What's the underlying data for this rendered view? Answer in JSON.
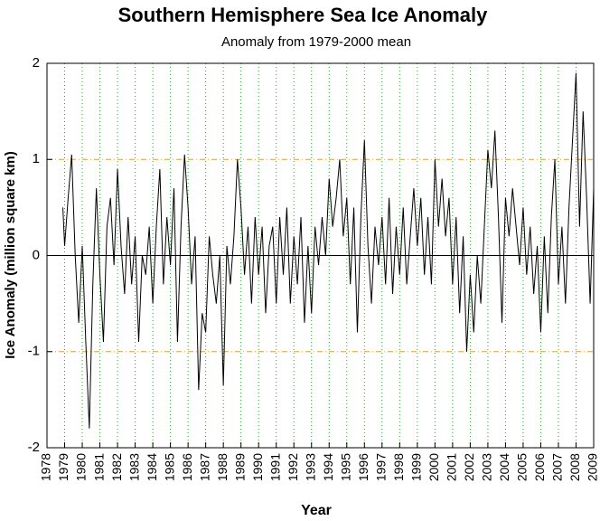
{
  "chart_data": {
    "type": "line",
    "title": "Southern Hemisphere Sea Ice Anomaly",
    "subtitle": "Anomaly from 1979-2000 mean",
    "xlabel": "Year",
    "ylabel": "Ice Anomaly (million square km)",
    "xlim": [
      1978,
      2009
    ],
    "ylim": [
      -2,
      2
    ],
    "xticks": [
      1978,
      1979,
      1980,
      1981,
      1982,
      1983,
      1984,
      1985,
      1986,
      1987,
      1988,
      1989,
      1990,
      1991,
      1992,
      1993,
      1994,
      1995,
      1996,
      1997,
      1998,
      1999,
      2000,
      2001,
      2002,
      2003,
      2004,
      2005,
      2006,
      2007,
      2008,
      2009
    ],
    "yticks": [
      -2,
      -1,
      0,
      1,
      2
    ],
    "grid": true,
    "series": [
      {
        "name": "Anomaly",
        "color": "#000000",
        "x": [
          1978.9,
          1979.0,
          1979.2,
          1979.4,
          1979.6,
          1979.8,
          1980.0,
          1980.2,
          1980.4,
          1980.6,
          1980.8,
          1981.0,
          1981.2,
          1981.4,
          1981.6,
          1981.8,
          1982.0,
          1982.2,
          1982.4,
          1982.6,
          1982.8,
          1983.0,
          1983.2,
          1983.4,
          1983.6,
          1983.8,
          1984.0,
          1984.2,
          1984.4,
          1984.6,
          1984.8,
          1985.0,
          1985.2,
          1985.4,
          1985.6,
          1985.8,
          1986.0,
          1986.2,
          1986.4,
          1986.6,
          1986.8,
          1987.0,
          1987.2,
          1987.4,
          1987.6,
          1987.8,
          1988.0,
          1988.2,
          1988.4,
          1988.6,
          1988.8,
          1989.0,
          1989.2,
          1989.4,
          1989.6,
          1989.8,
          1990.0,
          1990.2,
          1990.4,
          1990.6,
          1990.8,
          1991.0,
          1991.2,
          1991.4,
          1991.6,
          1991.8,
          1992.0,
          1992.2,
          1992.4,
          1992.6,
          1992.8,
          1993.0,
          1993.2,
          1993.4,
          1993.6,
          1993.8,
          1994.0,
          1994.2,
          1994.4,
          1994.6,
          1994.8,
          1995.0,
          1995.2,
          1995.4,
          1995.6,
          1995.8,
          1996.0,
          1996.2,
          1996.4,
          1996.6,
          1996.8,
          1997.0,
          1997.2,
          1997.4,
          1997.6,
          1997.8,
          1998.0,
          1998.2,
          1998.4,
          1998.6,
          1998.8,
          1999.0,
          1999.2,
          1999.4,
          1999.6,
          1999.8,
          2000.0,
          2000.2,
          2000.4,
          2000.6,
          2000.8,
          2001.0,
          2001.2,
          2001.4,
          2001.6,
          2001.8,
          2002.0,
          2002.2,
          2002.4,
          2002.6,
          2002.8,
          2003.0,
          2003.2,
          2003.4,
          2003.6,
          2003.8,
          2004.0,
          2004.2,
          2004.4,
          2004.6,
          2004.8,
          2005.0,
          2005.2,
          2005.4,
          2005.6,
          2005.8,
          2006.0,
          2006.2,
          2006.4,
          2006.6,
          2006.8,
          2007.0,
          2007.2,
          2007.4,
          2007.6,
          2007.8,
          2008.0,
          2008.2,
          2008.4,
          2008.6,
          2008.8,
          2009.0
        ],
        "values": [
          0.5,
          0.1,
          0.6,
          1.05,
          0.0,
          -0.7,
          0.1,
          -0.9,
          -1.8,
          -0.3,
          0.7,
          -0.2,
          -0.9,
          0.3,
          0.6,
          -0.1,
          0.9,
          0.1,
          -0.4,
          0.4,
          -0.3,
          0.2,
          -0.9,
          0.0,
          -0.2,
          0.3,
          -0.5,
          0.3,
          0.9,
          -0.3,
          0.4,
          -0.1,
          0.7,
          -0.9,
          0.3,
          1.05,
          0.5,
          -0.3,
          0.2,
          -1.4,
          -0.6,
          -0.8,
          0.2,
          -0.2,
          -0.5,
          0.0,
          -1.35,
          0.1,
          -0.3,
          0.2,
          1.0,
          0.5,
          -0.2,
          0.3,
          -0.5,
          0.4,
          -0.2,
          0.3,
          -0.6,
          0.1,
          0.3,
          -0.5,
          0.4,
          -0.2,
          0.5,
          -0.5,
          0.2,
          -0.3,
          0.4,
          -0.7,
          0.1,
          -0.6,
          0.3,
          -0.1,
          0.4,
          0.0,
          0.8,
          0.3,
          0.6,
          1.0,
          0.2,
          0.6,
          -0.3,
          0.5,
          -0.8,
          0.4,
          1.2,
          0.1,
          -0.5,
          0.3,
          -0.1,
          0.4,
          -0.3,
          0.6,
          -0.4,
          0.3,
          -0.2,
          0.5,
          -0.3,
          0.2,
          0.7,
          0.1,
          0.6,
          -0.2,
          0.4,
          -0.3,
          1.0,
          0.3,
          0.8,
          0.2,
          0.6,
          -0.3,
          0.4,
          -0.6,
          0.2,
          -1.0,
          -0.2,
          -0.8,
          0.0,
          -0.5,
          0.3,
          1.1,
          0.7,
          1.3,
          0.4,
          -0.7,
          0.6,
          0.2,
          0.7,
          0.3,
          -0.1,
          0.5,
          -0.2,
          0.3,
          -0.4,
          0.1,
          -0.8,
          0.2,
          -0.6,
          0.4,
          1.0,
          -0.3,
          0.3,
          -0.5,
          0.5,
          1.2,
          1.9,
          0.3,
          1.5,
          0.6,
          -0.5,
          0.7
        ]
      }
    ]
  }
}
